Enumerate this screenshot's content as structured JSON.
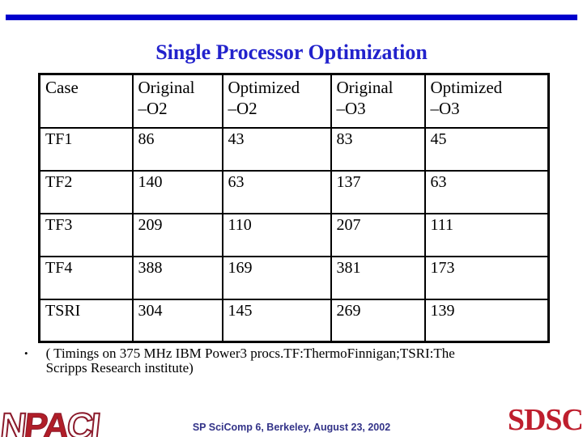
{
  "slide": {
    "title": "Single Processor Optimization"
  },
  "colors": {
    "accent_bar": "#0000CC",
    "title_text": "#2222CC",
    "table_border": "#000000",
    "footer_text": "#333388",
    "npaci_solid": "#B01E28",
    "npaci_outline": "#8B1A2B",
    "sdsc_text": "#BE1E2D"
  },
  "table": {
    "headers": [
      "Case",
      "Original\n–O2",
      "Optimized\n–O2",
      "Original\n–O3",
      "Optimized\n–O3"
    ],
    "rows": [
      {
        "case": "TF1",
        "values": [
          "86",
          "43",
          "83",
          "45"
        ]
      },
      {
        "case": "TF2",
        "values": [
          "140",
          "63",
          "137",
          "63"
        ]
      },
      {
        "case": "TF3",
        "values": [
          "209",
          "110",
          "207",
          "111"
        ]
      },
      {
        "case": "TF4",
        "values": [
          "388",
          "169",
          "381",
          "173"
        ]
      },
      {
        "case": "TSRI",
        "values": [
          "304",
          "145",
          "269",
          "139"
        ]
      }
    ]
  },
  "note": {
    "marker": "•",
    "lines": [
      "( Timings on 375 MHz IBM Power3 procs.TF:ThermoFinnigan;TSRI:The",
      "Scripps Research institute)"
    ]
  },
  "footer": {
    "text": "SP SciComp 6, Berkeley, August 23, 2002"
  },
  "logos": {
    "npaci": {
      "letters": [
        "N",
        "P",
        "A",
        "C",
        "I"
      ]
    },
    "sdsc": {
      "text": "SDSC"
    }
  }
}
